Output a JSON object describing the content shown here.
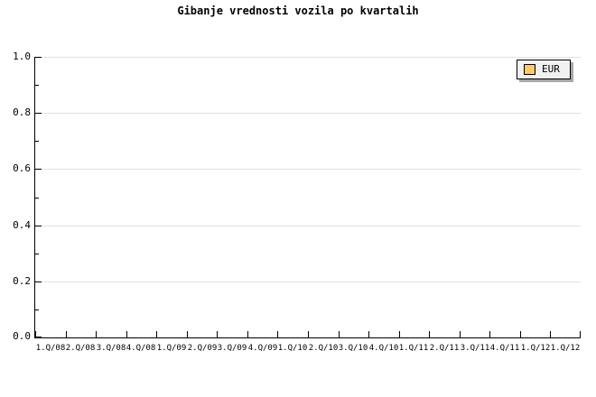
{
  "chart_data": {
    "type": "bar",
    "title": "Gibanje vrednosti vozila po kvartalih",
    "categories": [
      "1.Q/08",
      "2.Q/08",
      "3.Q/08",
      "4.Q/08",
      "1.Q/09",
      "2.Q/09",
      "3.Q/09",
      "4.Q/09",
      "1.Q/10",
      "2.Q/10",
      "3.Q/10",
      "4.Q/10",
      "1.Q/11",
      "2.Q/11",
      "3.Q/11",
      "4.Q/11",
      "1.Q/12",
      "1.Q/12"
    ],
    "series": [
      {
        "name": "EUR",
        "color": "#FFC966",
        "values": []
      }
    ],
    "plot_empty": true,
    "ylim": [
      0.0,
      1.0
    ],
    "ytick_step": 0.2,
    "ytick_minor_step": 0.1,
    "ytick_labels": [
      "0.0",
      "0.2",
      "0.4",
      "0.6",
      "0.8",
      "1.0"
    ],
    "grid": "horizontal-only",
    "legend_position": "top-right"
  },
  "legend": {
    "entries": [
      {
        "label": "EUR",
        "swatch_color": "#FFC966"
      }
    ]
  },
  "colors": {
    "background": "#ffffff",
    "text": "#000000",
    "axis": "#000000",
    "gridline": "#e0e0e0",
    "legend_bg": "#f0f0f0",
    "legend_border": "#000000",
    "legend_shadow": "#a8a8a8",
    "swatch": "#FFC966",
    "swatch_border": "#000000"
  }
}
